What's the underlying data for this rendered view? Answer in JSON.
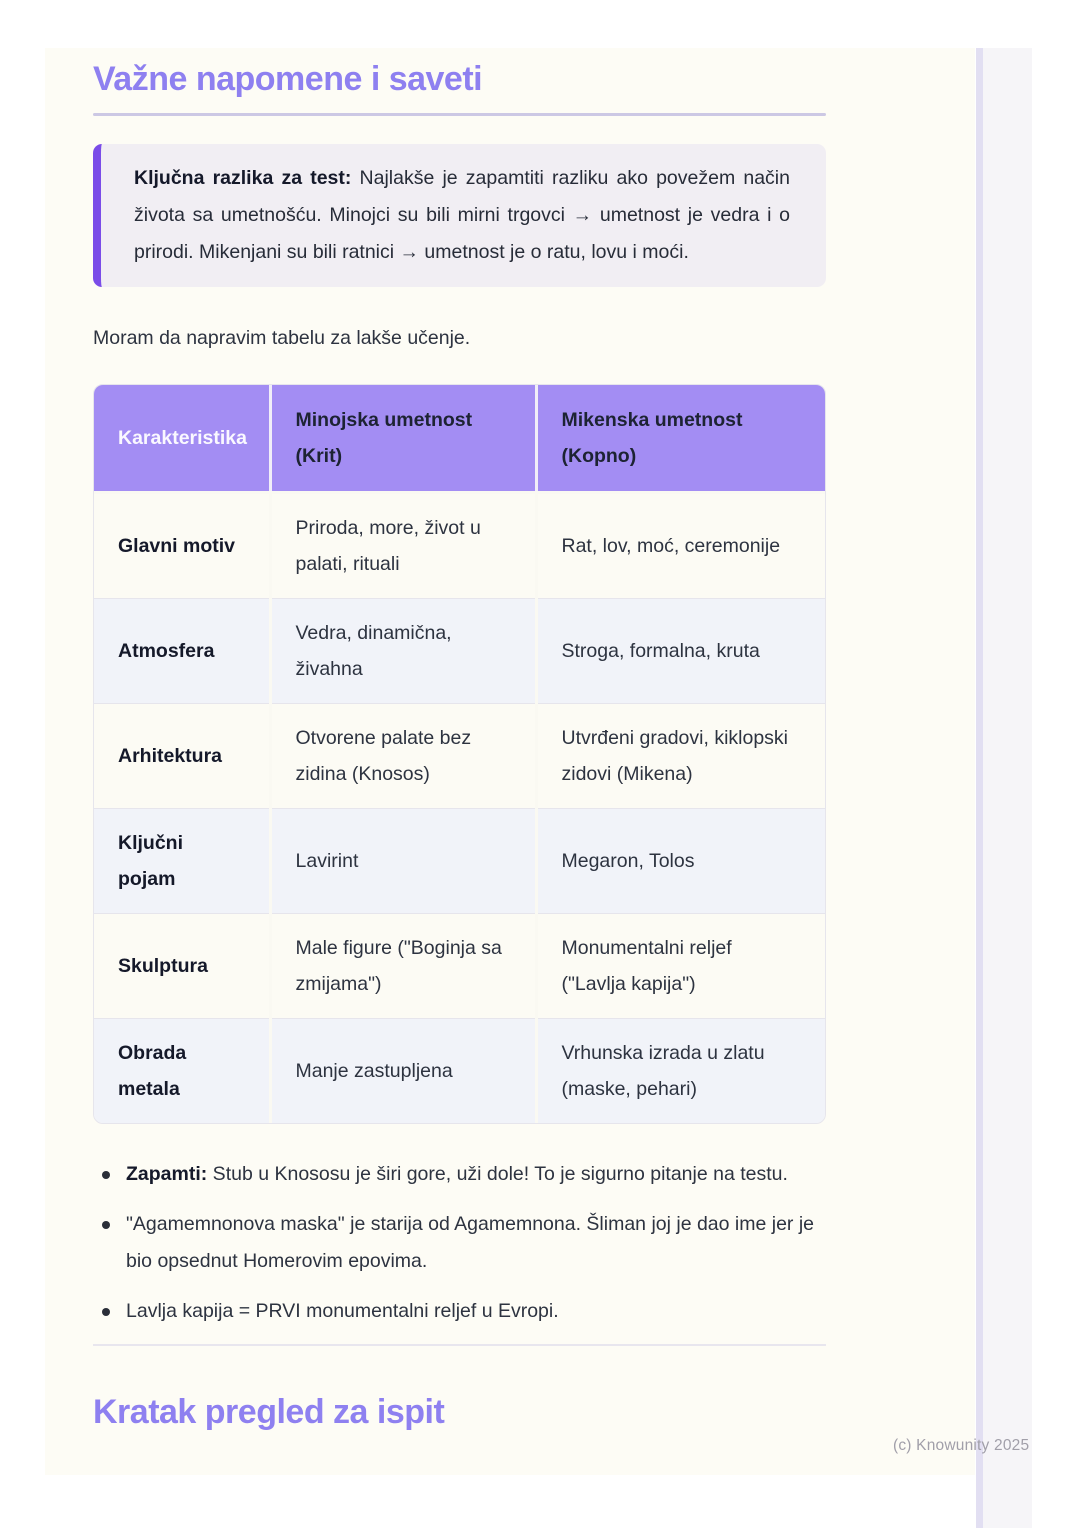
{
  "sections": {
    "notes_title": "Važne napomene i saveti",
    "review_title": "Kratak pregled za ispit"
  },
  "callout": {
    "bold": "Ključna razlika za test:",
    "text": " Najlakše je zapamtiti razliku ako povežem način života sa umetnošću. Minojci su bili mirni trgovci → umetnost je vedra i o prirodi. Mikenjani su bili ratnici → umetnost je o ratu, lovu i moći."
  },
  "paragraph": "Moram da napravim tabelu za lakše učenje.",
  "table": {
    "headers": [
      "Karakteristika",
      "Minojska umetnost (Krit)",
      "Mikenska umetnost (Kopno)"
    ],
    "rows": [
      {
        "label": "Glavni motiv",
        "minojska": "Priroda, more, život u palati, rituali",
        "mikenska": "Rat, lov, moć, ceremonije"
      },
      {
        "label": "Atmosfera",
        "minojska": "Vedra, dinamična, živahna",
        "mikenska": "Stroga, formalna, kruta"
      },
      {
        "label": "Arhitektura",
        "minojska": "Otvorene palate bez zidina (Knosos)",
        "mikenska": "Utvrđeni gradovi, kiklopski zidovi (Mikena)"
      },
      {
        "label": "Ključni pojam",
        "minojska": "Lavirint",
        "mikenska": "Megaron, Tolos"
      },
      {
        "label": "Skulptura",
        "minojska": "Male figure (\"Boginja sa zmijama\")",
        "mikenska": "Monumentalni reljef (\"Lavlja kapija\")"
      },
      {
        "label": "Obrada metala",
        "minojska": "Manje zastupljena",
        "mikenska": "Vrhunska izrada u zlatu (maske, pehari)"
      }
    ]
  },
  "bullets": [
    {
      "bold": "Zapamti:",
      "text": " Stub u Knososu je širi gore, uži dole! To je sigurno pitanje na testu."
    },
    {
      "bold": "",
      "text": "\"Agamemnonova maska\" je starija od Agamemnona. Šliman joj je dao ime jer je bio opsednut Homerovim epovima."
    },
    {
      "bold": "",
      "text": "Lavlja kapija = PRVI monumentalni reljef u Evropi."
    }
  ],
  "watermark": "(c) Knowunity 2025",
  "colors": {
    "accent": "#8e80f0",
    "callout_border": "#7a4ce8",
    "callout_bg": "#f1eef3",
    "table_header_bg": "#a38df3",
    "row_alt_bg": "#f1f3f9",
    "page_bg": "#fdfcf5"
  }
}
